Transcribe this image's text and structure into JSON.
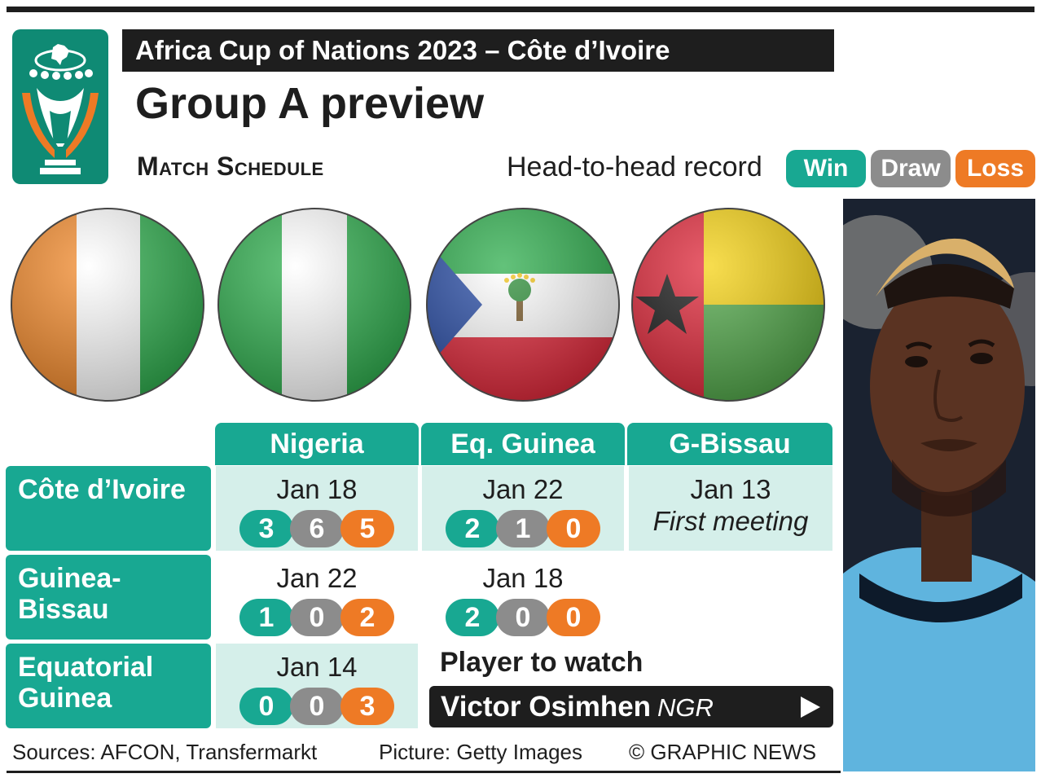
{
  "header": {
    "supertitle": "Africa Cup of Nations 2023 – Côte d’Ivoire",
    "title": "Group A preview",
    "subhead": "Match Schedule",
    "h2h_label": "Head-to-head record"
  },
  "legend": {
    "win": "Win",
    "draw": "Draw",
    "loss": "Loss"
  },
  "columns": [
    "Nigeria",
    "Eq. Guinea",
    "G-Bissau"
  ],
  "rows": [
    {
      "team_line1": "Côte d’Ivoire",
      "team_line2": "",
      "cells": [
        {
          "date": "Jan 18",
          "win": "3",
          "draw": "6",
          "loss": "5"
        },
        {
          "date": "Jan 22",
          "win": "2",
          "draw": "1",
          "loss": "0"
        },
        {
          "date": "Jan 13",
          "note": "First meeting"
        }
      ]
    },
    {
      "team_line1": "Guinea-",
      "team_line2": "Bissau",
      "cells": [
        {
          "date": "Jan 22",
          "win": "1",
          "draw": "0",
          "loss": "2"
        },
        {
          "date": "Jan 18",
          "win": "2",
          "draw": "0",
          "loss": "0"
        }
      ]
    },
    {
      "team_line1": "Equatorial",
      "team_line2": "Guinea",
      "cells": [
        {
          "date": "Jan 14",
          "win": "0",
          "draw": "0",
          "loss": "3"
        }
      ]
    }
  ],
  "player": {
    "heading": "Player to watch",
    "name": "Victor Osimhen",
    "nation": "NGR"
  },
  "footer": {
    "sources": "Sources: AFCON, Transfermarkt",
    "picture": "Picture: Getty Images",
    "credit": "© GRAPHIC NEWS"
  },
  "colors": {
    "teal": "#18a892",
    "grey": "#8c8c8c",
    "orange": "#ee7a25",
    "dark": "#1e1e1e",
    "cell_shade": "#d5efea"
  }
}
